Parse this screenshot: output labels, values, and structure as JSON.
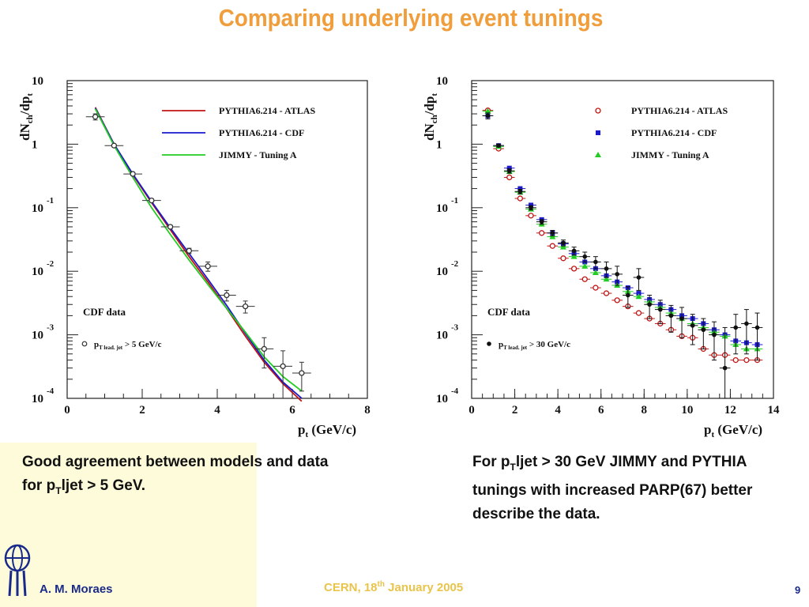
{
  "slide": {
    "title": "Comparing underlying event tunings",
    "caption_left": {
      "part1": "Good agreement between models and data for p",
      "sub": "T",
      "part2": "ljet > 5 GeV."
    },
    "caption_right": {
      "part1": "For p",
      "sub": "T",
      "part2": "ljet > 30 GeV JIMMY and PYTHIA tunings with increased PARP(67) better describe the data."
    },
    "footer": {
      "author": "A. M. Moraes",
      "event_prefix": "CERN, 18",
      "event_sup": "th",
      "event_suffix": " January 2005",
      "page": "9"
    }
  },
  "chart_data": [
    {
      "type": "line",
      "ylabel": "dNch/dpt",
      "xlabel": "pt (GeV/c)",
      "xlim": [
        0,
        8
      ],
      "ylim": [
        0.0001,
        10
      ],
      "yscale": "log",
      "xticks": [
        "0",
        "2",
        "4",
        "6",
        "8"
      ],
      "yticks": [
        {
          "base": "10",
          "exp": ""
        },
        {
          "base": "1",
          "exp": ""
        },
        {
          "base": "10",
          "exp": "-1"
        },
        {
          "base": "10",
          "exp": "-2"
        },
        {
          "base": "10",
          "exp": "-3"
        },
        {
          "base": "10",
          "exp": "-4"
        }
      ],
      "legend_position": "top-right",
      "annotation": {
        "text": "CDF data",
        "cut_prefix": "p",
        "cut_sub": "T lead. jet",
        "cut_suffix": " > 5 GeV/c"
      },
      "series": [
        {
          "name": "PYTHIA6.214 - ATLAS",
          "color": "#c01515",
          "x": [
            0.75,
            1.25,
            1.75,
            2.25,
            2.75,
            3.25,
            3.75,
            4.25,
            4.75,
            5.25,
            5.75,
            6.25
          ],
          "y": [
            3.8,
            1.0,
            0.33,
            0.12,
            0.045,
            0.017,
            0.0068,
            0.0026,
            0.00095,
            0.00037,
            0.00017,
            9e-05
          ]
        },
        {
          "name": "PYTHIA6.214 - CDF",
          "color": "#1a1acc",
          "x": [
            0.75,
            1.25,
            1.75,
            2.25,
            2.75,
            3.25,
            3.75,
            4.25,
            4.75,
            5.25,
            5.75,
            6.25
          ],
          "y": [
            3.7,
            1.0,
            0.34,
            0.125,
            0.048,
            0.019,
            0.0075,
            0.0029,
            0.00105,
            0.0004,
            0.00018,
            0.0001
          ]
        },
        {
          "name": "JIMMY - Tuning A",
          "color": "#22cc22",
          "x": [
            0.75,
            1.25,
            1.75,
            2.25,
            2.75,
            3.25,
            3.75,
            4.25,
            4.75,
            5.25,
            5.75,
            6.25
          ],
          "y": [
            3.6,
            0.95,
            0.3,
            0.1,
            0.038,
            0.015,
            0.0062,
            0.0026,
            0.0011,
            0.00045,
            0.00022,
            0.00013
          ]
        },
        {
          "name": "CDF data",
          "marker": "open-circle",
          "color": "#333333",
          "x": [
            0.75,
            1.25,
            1.75,
            2.25,
            2.75,
            3.25,
            3.75,
            4.25,
            4.75,
            5.25,
            5.75,
            6.25
          ],
          "y": [
            2.7,
            0.95,
            0.34,
            0.13,
            0.05,
            0.021,
            0.012,
            0.0042,
            0.0028,
            0.0006,
            0.00032,
            0.00025
          ],
          "yerr_lo": [
            0.3,
            0.05,
            0.02,
            0.007,
            0.003,
            0.002,
            0.002,
            0.0008,
            0.0006,
            0.0003,
            0.00024,
            0.00012
          ],
          "yerr_hi": [
            0.3,
            0.05,
            0.02,
            0.007,
            0.003,
            0.002,
            0.002,
            0.0008,
            0.0006,
            0.0003,
            0.00024,
            0.00012
          ]
        }
      ]
    },
    {
      "type": "scatter",
      "ylabel": "dNch/dpt",
      "xlabel": "pt (GeV/c)",
      "xlim": [
        0,
        14
      ],
      "ylim": [
        0.0001,
        10
      ],
      "yscale": "log",
      "xticks": [
        "0",
        "2",
        "4",
        "6",
        "8",
        "10",
        "12",
        "14"
      ],
      "yticks": [
        {
          "base": "10",
          "exp": ""
        },
        {
          "base": "1",
          "exp": ""
        },
        {
          "base": "10",
          "exp": "-1"
        },
        {
          "base": "10",
          "exp": "-2"
        },
        {
          "base": "10",
          "exp": "-3"
        },
        {
          "base": "10",
          "exp": "-4"
        }
      ],
      "legend_position": "top-right",
      "annotation": {
        "text": "CDF data",
        "cut_prefix": "p",
        "cut_sub": "T lead. jet",
        "cut_suffix": " > 30 GeV/c"
      },
      "series": [
        {
          "name": "PYTHIA6.214 - ATLAS",
          "marker": "open-circle",
          "color": "#c01515",
          "x": [
            0.75,
            1.25,
            1.75,
            2.25,
            2.75,
            3.25,
            3.75,
            4.25,
            4.75,
            5.25,
            5.75,
            6.25,
            6.75,
            7.25,
            7.75,
            8.25,
            8.75,
            9.25,
            9.75,
            10.25,
            10.75,
            11.25,
            11.75,
            12.25,
            12.75,
            13.25
          ],
          "y": [
            3.4,
            0.85,
            0.3,
            0.14,
            0.075,
            0.04,
            0.025,
            0.016,
            0.011,
            0.0075,
            0.0055,
            0.0045,
            0.0035,
            0.0028,
            0.0022,
            0.0018,
            0.0015,
            0.0012,
            0.00095,
            0.0009,
            0.0006,
            0.00048,
            0.00048,
            0.0004,
            0.0004,
            0.0004
          ]
        },
        {
          "name": "PYTHIA6.214 - CDF",
          "marker": "filled-square",
          "color": "#1a1acc",
          "x": [
            0.75,
            1.25,
            1.75,
            2.25,
            2.75,
            3.25,
            3.75,
            4.25,
            4.75,
            5.25,
            5.75,
            6.25,
            6.75,
            7.25,
            7.75,
            8.25,
            8.75,
            9.25,
            9.75,
            10.25,
            10.75,
            11.25,
            11.75,
            12.25,
            12.75,
            13.25
          ],
          "y": [
            2.8,
            0.95,
            0.42,
            0.2,
            0.11,
            0.065,
            0.04,
            0.027,
            0.019,
            0.014,
            0.011,
            0.0085,
            0.0068,
            0.0055,
            0.0045,
            0.0036,
            0.003,
            0.0025,
            0.002,
            0.0018,
            0.0015,
            0.0012,
            0.001,
            0.0008,
            0.00075,
            0.0007
          ]
        },
        {
          "name": "JIMMY - Tuning A",
          "marker": "filled-triangle",
          "color": "#22cc22",
          "x": [
            0.75,
            1.25,
            1.75,
            2.25,
            2.75,
            3.25,
            3.75,
            4.25,
            4.75,
            5.25,
            5.75,
            6.25,
            6.75,
            7.25,
            7.75,
            8.25,
            8.75,
            9.25,
            9.75,
            10.25,
            10.75,
            11.25,
            11.75,
            12.25,
            12.75,
            13.25
          ],
          "y": [
            3.3,
            0.92,
            0.37,
            0.175,
            0.095,
            0.055,
            0.035,
            0.024,
            0.017,
            0.012,
            0.0095,
            0.0075,
            0.006,
            0.0048,
            0.004,
            0.0033,
            0.0027,
            0.0022,
            0.0018,
            0.0015,
            0.0013,
            0.0011,
            0.00095,
            0.0007,
            0.0006,
            0.0006
          ]
        },
        {
          "name": "CDF data",
          "marker": "filled-circle",
          "color": "#111111",
          "x": [
            0.75,
            1.25,
            1.75,
            2.25,
            2.75,
            3.25,
            3.75,
            4.25,
            4.75,
            5.25,
            5.75,
            6.25,
            6.75,
            7.25,
            7.75,
            8.25,
            8.75,
            9.25,
            9.75,
            10.25,
            10.75,
            11.25,
            11.75,
            12.25,
            12.75,
            13.25
          ],
          "y": [
            2.8,
            0.95,
            0.38,
            0.18,
            0.1,
            0.06,
            0.04,
            0.028,
            0.021,
            0.017,
            0.014,
            0.011,
            0.009,
            0.0042,
            0.008,
            0.003,
            0.0025,
            0.002,
            0.0018,
            0.0014,
            0.0012,
            0.001,
            0.0003,
            0.0013,
            0.0015,
            0.0013
          ],
          "yerr_lo": [
            0.3,
            0.05,
            0.03,
            0.015,
            0.008,
            0.005,
            0.004,
            0.003,
            0.003,
            0.003,
            0.003,
            0.003,
            0.003,
            0.0015,
            0.003,
            0.0012,
            0.001,
            0.0009,
            0.0009,
            0.0007,
            0.0006,
            0.0006,
            0.0002,
            0.0008,
            0.001,
            0.0009
          ],
          "yerr_hi": [
            0.3,
            0.05,
            0.03,
            0.015,
            0.008,
            0.005,
            0.004,
            0.003,
            0.003,
            0.003,
            0.003,
            0.003,
            0.003,
            0.0015,
            0.003,
            0.0012,
            0.001,
            0.0009,
            0.0009,
            0.0007,
            0.0006,
            0.0006,
            0.001,
            0.0008,
            0.001,
            0.0009
          ]
        }
      ]
    }
  ]
}
